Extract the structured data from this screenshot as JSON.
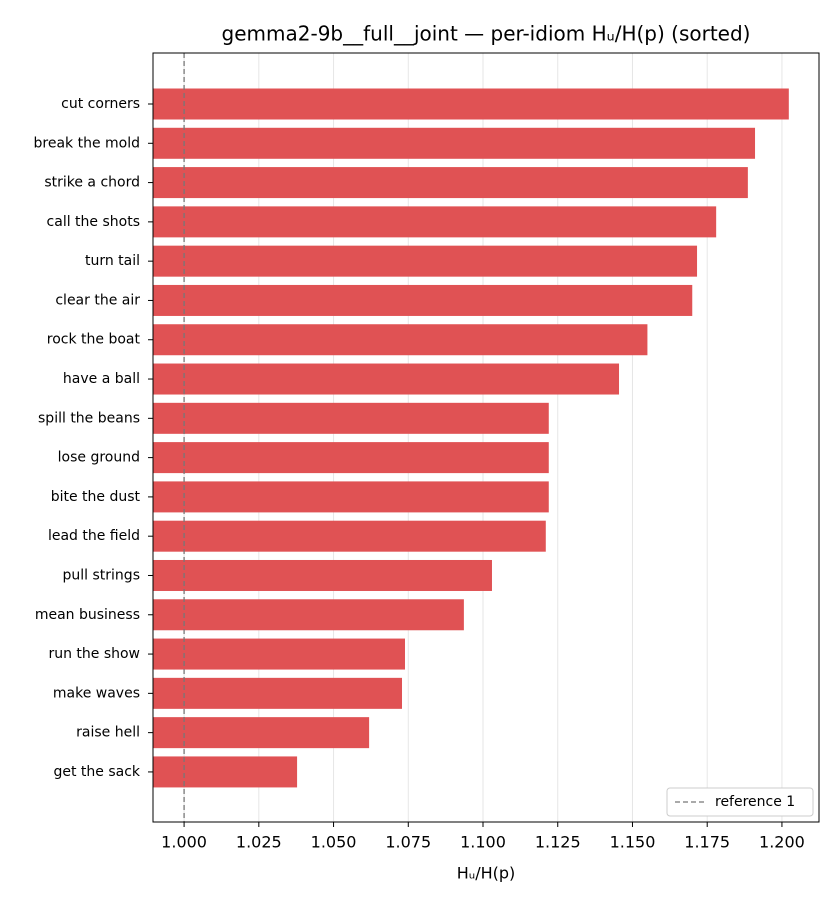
{
  "chart_data": {
    "type": "barh",
    "title": "gemma2-9b__full__joint — per-idiom Hᵤ/H(p) (sorted)",
    "x_label": "Hᵤ/H(p)",
    "categories": [
      "cut corners",
      "break the mold",
      "strike a chord",
      "call the shots",
      "turn tail",
      "clear the air",
      "rock the boat",
      "have a ball",
      "spill the beans",
      "lose ground",
      "bite the dust",
      "lead the field",
      "pull strings",
      "mean business",
      "run the show",
      "make waves",
      "raise hell",
      "get the sack"
    ],
    "values": [
      1.2023,
      1.191,
      1.1886,
      1.178,
      1.1716,
      1.17,
      1.155,
      1.1455,
      1.122,
      1.122,
      1.122,
      1.121,
      1.103,
      1.0936,
      1.0739,
      1.0729,
      1.0619,
      1.0378
    ],
    "color": "#e05254",
    "xlim": [
      0.9896,
      1.2124
    ],
    "xticks": [
      {
        "value": 1,
        "label": "1.000"
      },
      {
        "value": 1.025,
        "label": "1.025"
      },
      {
        "value": 1.05,
        "label": "1.050"
      },
      {
        "value": 1.075,
        "label": "1.075"
      },
      {
        "value": 1.1,
        "label": "1.100"
      },
      {
        "value": 1.125,
        "label": "1.125"
      },
      {
        "value": 1.15,
        "label": "1.150"
      },
      {
        "value": 1.175,
        "label": "1.175"
      },
      {
        "value": 1.2,
        "label": "1.200"
      }
    ],
    "grid": true,
    "reference": {
      "value": 1,
      "name": "reference 1",
      "color": "#777777"
    },
    "legend": "lower right"
  }
}
